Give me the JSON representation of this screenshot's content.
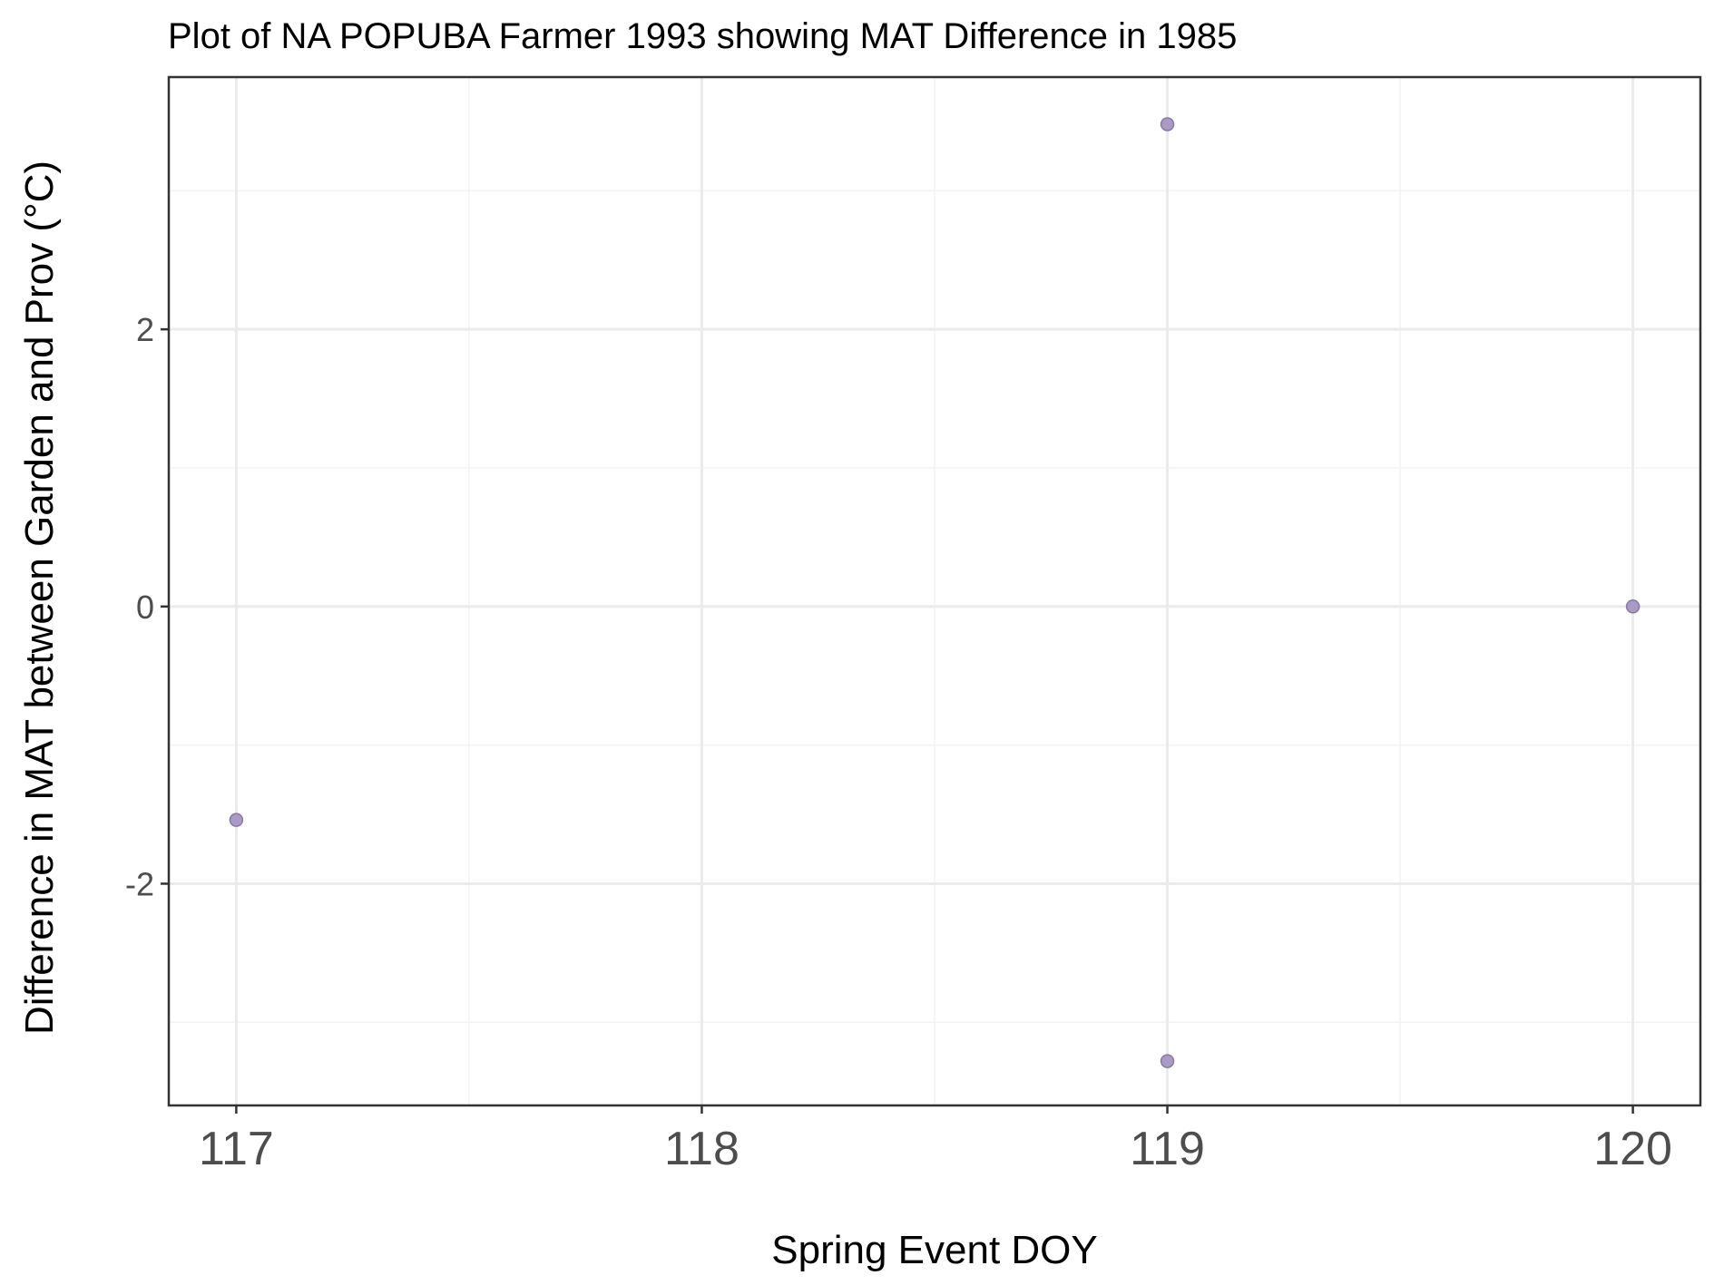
{
  "chart_data": {
    "type": "scatter",
    "title": "Plot of NA POPUBA Farmer 1993 showing MAT Difference in 1985",
    "xlabel": "Spring Event DOY",
    "ylabel": "Difference in MAT between Garden and Prov (°C)",
    "xlim": [
      116.855,
      120.145
    ],
    "ylim": [
      -3.6,
      3.82
    ],
    "x_ticks": [
      117,
      118,
      119,
      120
    ],
    "x_tick_labels": [
      "117",
      "118",
      "119",
      "120"
    ],
    "y_ticks": [
      -2,
      0,
      2
    ],
    "y_tick_labels": [
      "-2",
      "0",
      "2"
    ],
    "grid": true,
    "legend": "none",
    "points": [
      {
        "x": 117,
        "y": -1.54
      },
      {
        "x": 119,
        "y": 3.48
      },
      {
        "x": 119,
        "y": -3.28
      },
      {
        "x": 120,
        "y": 0.0
      }
    ],
    "colors": {
      "point_fill": "#a99bc3",
      "point_stroke": "#8878a8",
      "grid_major": "#ebebeb",
      "grid_minor": "#f3f3f3",
      "panel_border": "#333333"
    }
  }
}
